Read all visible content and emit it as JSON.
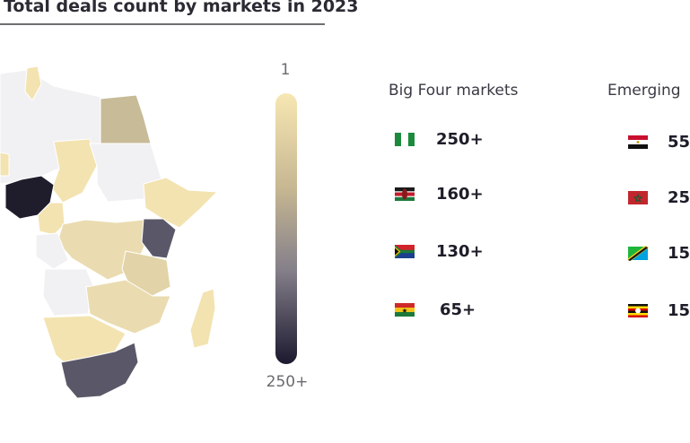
{
  "title": "Total deals count by markets in 2023",
  "scale": {
    "min_label": "1",
    "max_label": "250+",
    "colors": [
      "#f7e7b3",
      "#85808a",
      "#1c1930"
    ]
  },
  "big_four": {
    "heading": "Big Four markets",
    "rows": [
      {
        "flag_icon": "nigeria-flag-icon",
        "value": "250+"
      },
      {
        "flag_icon": "kenya-flag-icon",
        "value": "160+"
      },
      {
        "flag_icon": "south-africa-flag-icon",
        "value": "130+"
      },
      {
        "flag_icon": "ghana-flag-icon",
        "value": "65+"
      }
    ]
  },
  "emerging": {
    "heading": "Emerging",
    "rows": [
      {
        "flag_icon": "egypt-flag-icon",
        "value": "55"
      },
      {
        "flag_icon": "morocco-flag-icon",
        "value": "25"
      },
      {
        "flag_icon": "tanzania-flag-icon",
        "value": "15"
      },
      {
        "flag_icon": "uganda-flag-icon",
        "value": "15"
      }
    ]
  },
  "map_colors": {
    "none": "#f1f1f3",
    "low": "#f3e3b0",
    "mid": "#c8bb98",
    "high": "#5a5868",
    "top": "#1f1c2c"
  }
}
